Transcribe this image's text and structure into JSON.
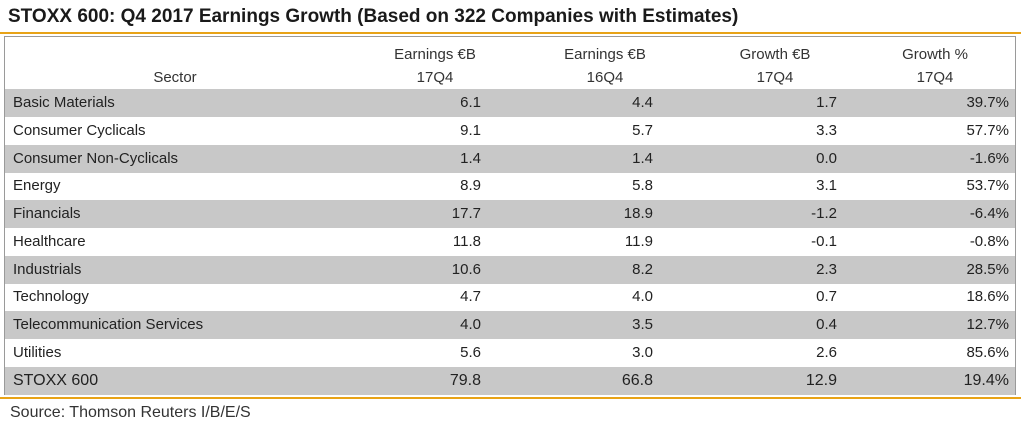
{
  "title": "STOXX 600: Q4 2017 Earnings Growth (Based on 322 Companies with Estimates)",
  "source": "Source: Thomson Reuters I/B/E/S",
  "colors": {
    "accent_rule": "#e8a317",
    "row_shade": "#c8c8c8",
    "border": "#9a9a9a"
  },
  "chart_data": {
    "type": "table",
    "title": "STOXX 600: Q4 2017 Earnings Growth (Based on 322 Companies with Estimates)",
    "columns": [
      {
        "key": "sector",
        "line1": "",
        "line2": "Sector"
      },
      {
        "key": "earn_17q4",
        "line1": "Earnings €B",
        "line2": "17Q4"
      },
      {
        "key": "earn_16q4",
        "line1": "Earnings €B",
        "line2": "16Q4"
      },
      {
        "key": "growth_eur",
        "line1": "Growth €B",
        "line2": "17Q4"
      },
      {
        "key": "growth_pct",
        "line1": "Growth %",
        "line2": "17Q4"
      }
    ],
    "rows": [
      {
        "sector": "Basic Materials",
        "earn_17q4": "6.1",
        "earn_16q4": "4.4",
        "growth_eur": "1.7",
        "growth_pct": "39.7%"
      },
      {
        "sector": "Consumer Cyclicals",
        "earn_17q4": "9.1",
        "earn_16q4": "5.7",
        "growth_eur": "3.3",
        "growth_pct": "57.7%"
      },
      {
        "sector": "Consumer Non-Cyclicals",
        "earn_17q4": "1.4",
        "earn_16q4": "1.4",
        "growth_eur": "0.0",
        "growth_pct": "-1.6%"
      },
      {
        "sector": "Energy",
        "earn_17q4": "8.9",
        "earn_16q4": "5.8",
        "growth_eur": "3.1",
        "growth_pct": "53.7%"
      },
      {
        "sector": "Financials",
        "earn_17q4": "17.7",
        "earn_16q4": "18.9",
        "growth_eur": "-1.2",
        "growth_pct": "-6.4%"
      },
      {
        "sector": "Healthcare",
        "earn_17q4": "11.8",
        "earn_16q4": "11.9",
        "growth_eur": "-0.1",
        "growth_pct": "-0.8%"
      },
      {
        "sector": "Industrials",
        "earn_17q4": "10.6",
        "earn_16q4": "8.2",
        "growth_eur": "2.3",
        "growth_pct": "28.5%"
      },
      {
        "sector": "Technology",
        "earn_17q4": "4.7",
        "earn_16q4": "4.0",
        "growth_eur": "0.7",
        "growth_pct": "18.6%"
      },
      {
        "sector": "Telecommunication Services",
        "earn_17q4": "4.0",
        "earn_16q4": "3.5",
        "growth_eur": "0.4",
        "growth_pct": "12.7%"
      },
      {
        "sector": "Utilities",
        "earn_17q4": "5.6",
        "earn_16q4": "3.0",
        "growth_eur": "2.6",
        "growth_pct": "85.6%"
      }
    ],
    "total": {
      "sector": "STOXX 600",
      "earn_17q4": "79.8",
      "earn_16q4": "66.8",
      "growth_eur": "12.9",
      "growth_pct": "19.4%"
    }
  }
}
